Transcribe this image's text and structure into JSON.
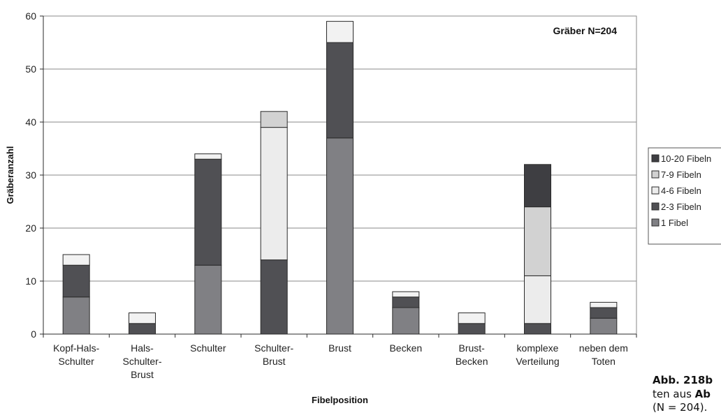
{
  "chart_data": {
    "type": "bar",
    "stacked": true,
    "categories": [
      [
        "Kopf-Hals-",
        "Schulter"
      ],
      [
        "Hals-",
        "Schulter-",
        "Brust"
      ],
      [
        "Schulter"
      ],
      [
        "Schulter-",
        "Brust"
      ],
      [
        "Brust"
      ],
      [
        "Becken"
      ],
      [
        "Brust-",
        "Becken"
      ],
      [
        "komplexe",
        "Verteilung"
      ],
      [
        "neben dem",
        "Toten"
      ]
    ],
    "series": [
      {
        "name": "1 Fibel",
        "color": "#808084",
        "values": [
          7,
          0,
          13,
          0,
          37,
          5,
          0,
          0,
          3
        ]
      },
      {
        "name": "2-3 Fibeln",
        "color": "#505054",
        "values": [
          6,
          2,
          20,
          14,
          18,
          2,
          2,
          2,
          2
        ]
      },
      {
        "name": "4-6 Fibeln",
        "color": "#ececec",
        "values": [
          0,
          0,
          0,
          25,
          0,
          0,
          0,
          9,
          0
        ]
      },
      {
        "name": "7-9 Fibeln",
        "color": "#d2d2d2",
        "values": [
          0,
          0,
          0,
          3,
          0,
          0,
          0,
          13,
          0
        ]
      },
      {
        "name": "10-20 Fibeln",
        "color": "#3e3e42",
        "values": [
          0,
          0,
          0,
          0,
          0,
          0,
          0,
          8,
          0
        ]
      },
      {
        "name": "",
        "color": "#f2f2f2",
        "values": [
          2,
          2,
          1,
          0,
          4,
          1,
          2,
          0,
          1
        ]
      }
    ],
    "legend_order": [
      4,
      3,
      2,
      1,
      0
    ],
    "legend_position": "right",
    "annotation": "Gräber N=204",
    "xlabel": "Fibelposition",
    "ylabel": "Gräberanzahl",
    "ylim": [
      0,
      60
    ],
    "yticks": [
      0,
      10,
      20,
      30,
      40,
      50,
      60
    ],
    "grid": true
  },
  "caption": {
    "line1_bold": "Abb. 218b",
    "line2_plain": "ten aus ",
    "line2_bold": "Ab",
    "line3": "(N = 204)."
  }
}
